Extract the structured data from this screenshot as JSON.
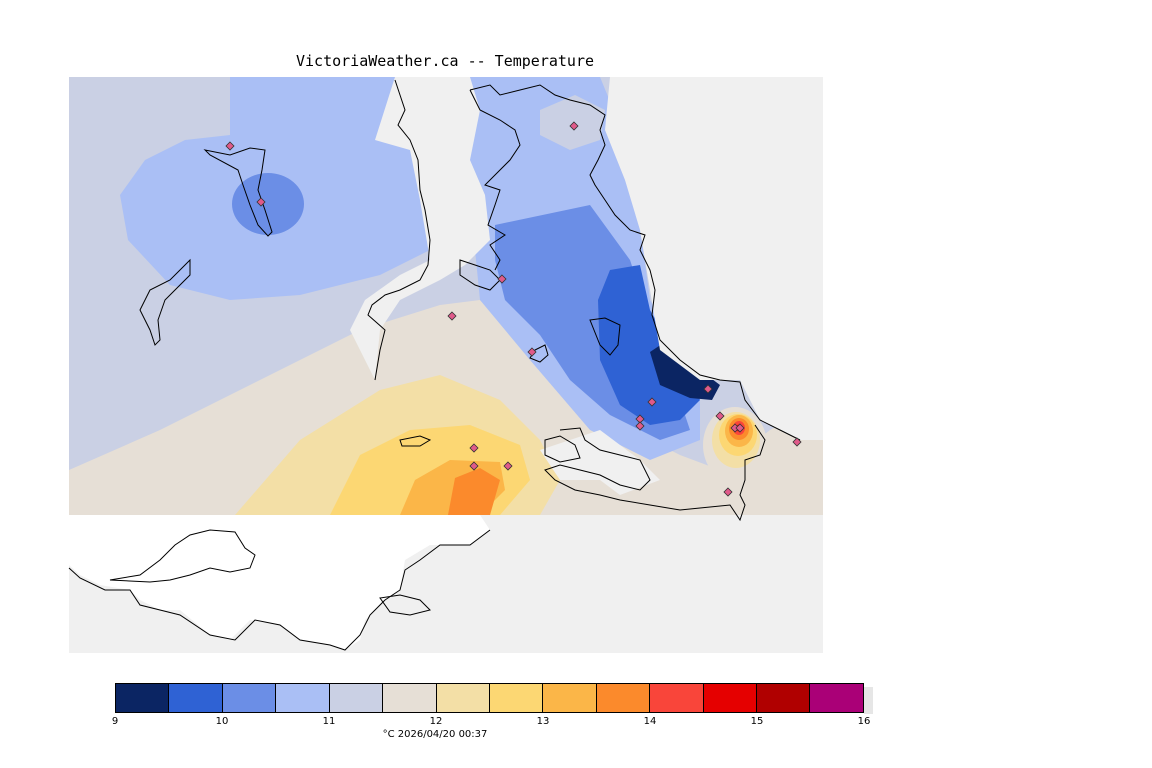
{
  "map": {
    "title": "VictoriaWeather.ca -- Temperature",
    "background_color": "#f0f0f0",
    "coastline_color": "#000000",
    "station_marker_color": "#e05a8a",
    "station_marker_icon": "diamond-icon"
  },
  "legend": {
    "colors": [
      "#0b2563",
      "#2f62d4",
      "#6b8ee6",
      "#aabff5",
      "#cad0e4",
      "#e6dfd6",
      "#f3dfa6",
      "#fcd773",
      "#fbb648",
      "#fb8a2c",
      "#f9453a",
      "#e50000",
      "#b00000",
      "#aa0077"
    ],
    "ticks": [
      "9",
      "10",
      "11",
      "12",
      "13",
      "14",
      "15",
      "16"
    ],
    "caption": "°C  2026/04/20 00:37"
  }
}
